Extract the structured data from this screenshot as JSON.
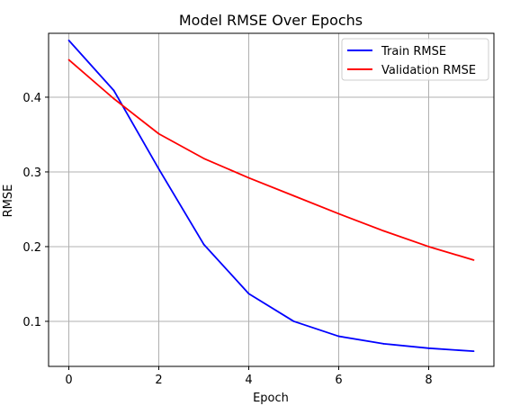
{
  "chart_data": {
    "type": "line",
    "title": "Model RMSE Over Epochs",
    "xlabel": "Epoch",
    "ylabel": "RMSE",
    "x": [
      0,
      1,
      2,
      3,
      4,
      5,
      6,
      7,
      8,
      9
    ],
    "xlim": [
      -0.45,
      9.45
    ],
    "ylim": [
      0.0397,
      0.4855
    ],
    "xticks": [
      0,
      2,
      4,
      6,
      8
    ],
    "yticks": [
      0.1,
      0.2,
      0.3,
      0.4
    ],
    "xtick_labels": [
      "0",
      "2",
      "4",
      "6",
      "8"
    ],
    "ytick_labels": [
      "0.1",
      "0.2",
      "0.3",
      "0.4"
    ],
    "grid": true,
    "legend_position": "top-right",
    "series": [
      {
        "name": "Train RMSE",
        "color": "#0000ff",
        "values": [
          0.476,
          0.409,
          0.304,
          0.203,
          0.137,
          0.1,
          0.08,
          0.07,
          0.064,
          0.06
        ]
      },
      {
        "name": "Validation RMSE",
        "color": "#ff0000",
        "values": [
          0.45,
          0.398,
          0.351,
          0.318,
          0.292,
          0.268,
          0.244,
          0.221,
          0.2,
          0.182
        ]
      }
    ]
  }
}
